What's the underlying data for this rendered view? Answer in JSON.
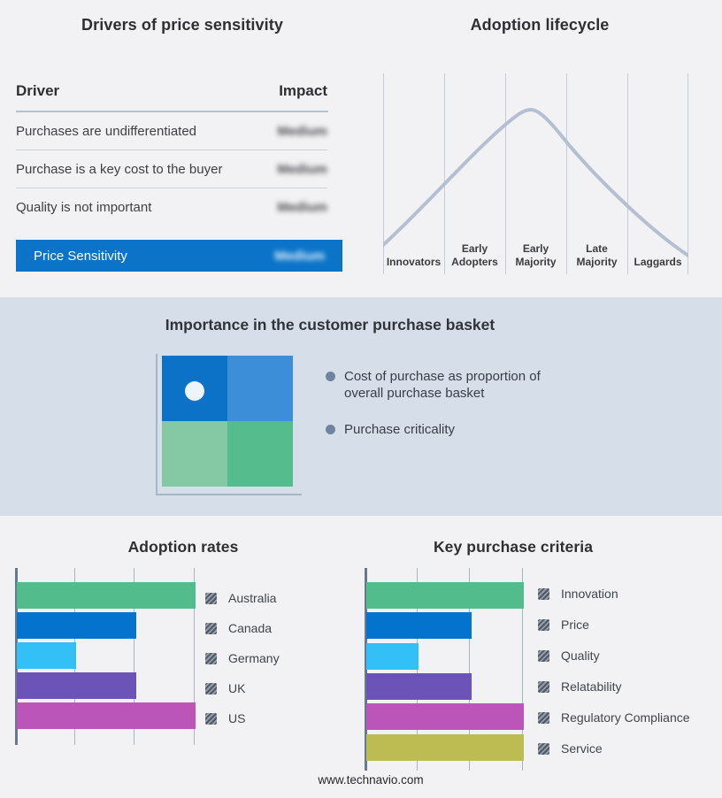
{
  "page": {
    "footer_url": "www.technavio.com"
  },
  "colors": {
    "page_background": "#f2f2f4",
    "band_background": "#d5dee9",
    "accent_blue": "#0b74c9",
    "lifecycle_curve": "#b4c0d2",
    "bullet_dot": "#6f84a0",
    "legend_swatch_hatched": "#4f5864"
  },
  "drivers_table": {
    "title": "Drivers of price sensitivity",
    "columns": [
      "Driver",
      "Impact"
    ],
    "rows": [
      {
        "driver": "Purchases are undifferentiated",
        "impact": "Medium"
      },
      {
        "driver": "Purchase is a key cost to the buyer",
        "impact": "Medium"
      },
      {
        "driver": "Quality is not important",
        "impact": "Medium"
      }
    ],
    "summary": {
      "label": "Price Sensitivity",
      "impact": "Medium"
    },
    "impact_values_blurred": true
  },
  "purchase_basket": {
    "title": "Importance in the customer purchase basket",
    "bullets": [
      "Cost of purchase as proportion of overall purchase basket",
      "Purchase criticality"
    ],
    "quadrant_colors": [
      "#0b72c7",
      "#3d8ed9",
      "#84c8a4",
      "#55bd8d"
    ],
    "marker": "white dot in upper-left quadrant"
  },
  "chart_data": [
    {
      "id": "adoption_lifecycle",
      "type": "line",
      "title": "Adoption lifecycle",
      "categories": [
        "Innovators",
        "Early Adopters",
        "Early Majority",
        "Late Majority",
        "Laggards"
      ],
      "shape": "bell curve peaking over Early Majority",
      "curve_points_normalized": [
        [
          0,
          0.07
        ],
        [
          0.2,
          0.42
        ],
        [
          0.35,
          0.76
        ],
        [
          0.48,
          1.0
        ],
        [
          0.6,
          0.8
        ],
        [
          0.8,
          0.4
        ],
        [
          1,
          0.02
        ]
      ],
      "y_axis": "unlabeled",
      "grid": "vertical segment dividers",
      "line_color": "#b4c0d2"
    },
    {
      "id": "adoption_rates",
      "type": "bar",
      "orientation": "horizontal",
      "title": "Adoption rates",
      "categories": [
        "Australia",
        "Canada",
        "Germany",
        "UK",
        "US"
      ],
      "values": [
        3,
        2,
        1,
        2,
        3
      ],
      "xlim": [
        0,
        3
      ],
      "axis_tick_labels": "none (relative scale)",
      "colors": [
        "#52bc8c",
        "#0473cd",
        "#33c0f7",
        "#6b53b8",
        "#bc55b9"
      ],
      "legend_position": "right",
      "grid": true
    },
    {
      "id": "key_purchase_criteria",
      "type": "bar",
      "orientation": "horizontal",
      "title": "Key purchase criteria",
      "categories": [
        "Innovation",
        "Price",
        "Quality",
        "Relatability",
        "Regulatory Compliance",
        "Service"
      ],
      "values": [
        3,
        2,
        1,
        2,
        3,
        3
      ],
      "xlim": [
        0,
        3
      ],
      "axis_tick_labels": "none (relative scale)",
      "colors": [
        "#52bc8c",
        "#0473cd",
        "#33c0f7",
        "#6b53b8",
        "#bc55b9",
        "#bcbc52"
      ],
      "legend_position": "right",
      "grid": true
    }
  ]
}
